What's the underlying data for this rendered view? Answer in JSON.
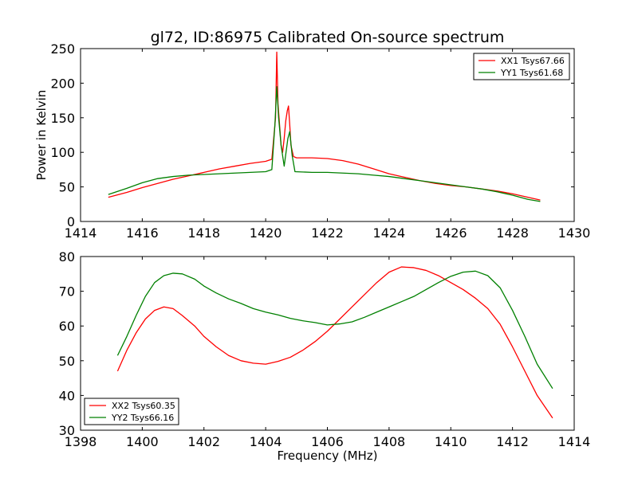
{
  "chart_data": [
    {
      "type": "line",
      "title": "gl72, ID:86975 Calibrated On-source spectrum",
      "xlabel": "",
      "ylabel": "Power in Kelvin",
      "xlim": [
        1414,
        1430
      ],
      "ylim": [
        0,
        250
      ],
      "xticks": [
        1414,
        1416,
        1418,
        1420,
        1422,
        1424,
        1426,
        1428,
        1430
      ],
      "yticks": [
        0,
        50,
        100,
        150,
        200,
        250
      ],
      "xtick_labels": [
        "1414",
        "1416",
        "1418",
        "1420",
        "1422",
        "1424",
        "1426",
        "1428",
        "1430"
      ],
      "ytick_labels": [
        "0",
        "50",
        "100",
        "150",
        "200",
        "250"
      ],
      "grid": false,
      "legend_position": "top-right",
      "series": [
        {
          "name": "XX1 Tsys67.66",
          "color": "#ff0000",
          "x": [
            1414.9,
            1415.5,
            1416.0,
            1416.5,
            1417.0,
            1417.5,
            1418.0,
            1418.5,
            1419.0,
            1419.5,
            1420.0,
            1420.2,
            1420.32,
            1420.36,
            1420.4,
            1420.45,
            1420.5,
            1420.55,
            1420.6,
            1420.65,
            1420.7,
            1420.74,
            1420.78,
            1420.82,
            1420.9,
            1421.0,
            1421.5,
            1422.0,
            1422.5,
            1423.0,
            1423.5,
            1424.0,
            1424.5,
            1425.0,
            1425.5,
            1426.0,
            1426.5,
            1427.0,
            1427.5,
            1428.0,
            1428.5,
            1428.9
          ],
          "y": [
            35,
            42,
            49,
            55,
            61,
            66,
            71,
            76,
            80,
            84,
            87,
            90,
            150,
            245,
            170,
            140,
            110,
            100,
            120,
            145,
            160,
            167,
            140,
            110,
            94,
            92,
            92,
            91,
            88,
            83,
            76,
            69,
            64,
            59,
            55,
            52,
            50,
            47,
            44,
            40,
            35,
            31
          ]
        },
        {
          "name": "YY1 Tsys61.68",
          "color": "#008000",
          "x": [
            1414.9,
            1415.5,
            1416.0,
            1416.5,
            1417.0,
            1417.5,
            1418.0,
            1418.5,
            1419.0,
            1419.5,
            1420.0,
            1420.2,
            1420.3,
            1420.36,
            1420.42,
            1420.5,
            1420.6,
            1420.66,
            1420.72,
            1420.78,
            1420.86,
            1420.95,
            1421.5,
            1422.0,
            1422.5,
            1423.0,
            1423.5,
            1424.0,
            1424.5,
            1425.0,
            1425.5,
            1426.0,
            1426.5,
            1427.0,
            1427.5,
            1428.0,
            1428.5,
            1428.9
          ],
          "y": [
            39,
            48,
            56,
            62,
            65,
            67,
            68,
            69,
            70,
            71,
            72,
            75,
            140,
            195,
            150,
            110,
            80,
            100,
            120,
            130,
            95,
            72,
            71,
            71,
            70,
            69,
            67,
            65,
            62,
            59,
            56,
            53,
            50,
            47,
            43,
            38,
            32,
            29
          ]
        }
      ]
    },
    {
      "type": "line",
      "title": "",
      "xlabel": "Frequency (MHz)",
      "ylabel": "",
      "xlim": [
        1398,
        1414
      ],
      "ylim": [
        30,
        80
      ],
      "xticks": [
        1398,
        1400,
        1402,
        1404,
        1406,
        1408,
        1410,
        1412,
        1414
      ],
      "yticks": [
        30,
        40,
        50,
        60,
        70,
        80
      ],
      "xtick_labels": [
        "1398",
        "1400",
        "1402",
        "1404",
        "1406",
        "1408",
        "1410",
        "1412",
        "1414"
      ],
      "ytick_labels": [
        "30",
        "40",
        "50",
        "60",
        "70",
        "80"
      ],
      "grid": false,
      "legend_position": "bottom-left",
      "series": [
        {
          "name": "XX2 Tsys60.35",
          "color": "#ff0000",
          "x": [
            1399.2,
            1399.5,
            1399.8,
            1400.1,
            1400.4,
            1400.7,
            1401.0,
            1401.3,
            1401.7,
            1402.0,
            1402.4,
            1402.8,
            1403.2,
            1403.6,
            1404.0,
            1404.4,
            1404.8,
            1405.2,
            1405.6,
            1406.0,
            1406.4,
            1406.8,
            1407.2,
            1407.6,
            1408.0,
            1408.4,
            1408.8,
            1409.2,
            1409.6,
            1410.0,
            1410.4,
            1410.8,
            1411.2,
            1411.6,
            1412.0,
            1412.4,
            1412.8,
            1413.3
          ],
          "y": [
            47,
            53,
            58,
            62,
            64.5,
            65.5,
            65,
            63,
            60,
            57,
            54,
            51.5,
            50,
            49.3,
            49,
            49.8,
            51,
            53,
            55.5,
            58.5,
            62,
            65.5,
            69,
            72.5,
            75.5,
            77,
            76.8,
            76,
            74.5,
            72.5,
            70.5,
            68,
            65,
            60.5,
            54,
            47,
            40,
            33.5
          ]
        },
        {
          "name": "YY2 Tsys66.16",
          "color": "#008000",
          "x": [
            1399.2,
            1399.5,
            1399.8,
            1400.1,
            1400.4,
            1400.7,
            1401.0,
            1401.3,
            1401.7,
            1402.0,
            1402.4,
            1402.8,
            1403.2,
            1403.6,
            1404.0,
            1404.4,
            1404.8,
            1405.2,
            1405.6,
            1406.0,
            1406.4,
            1406.8,
            1407.2,
            1407.6,
            1408.0,
            1408.4,
            1408.8,
            1409.2,
            1409.6,
            1410.0,
            1410.4,
            1410.8,
            1411.2,
            1411.6,
            1412.0,
            1412.4,
            1412.8,
            1413.3
          ],
          "y": [
            51.5,
            57,
            63,
            68.5,
            72.5,
            74.5,
            75.2,
            75,
            73.5,
            71.5,
            69.5,
            67.8,
            66.5,
            65,
            64,
            63.2,
            62.2,
            61.5,
            61,
            60.3,
            60.6,
            61.2,
            62.5,
            64,
            65.5,
            67,
            68.5,
            70.5,
            72.5,
            74.3,
            75.5,
            75.8,
            74.5,
            71,
            64.5,
            57,
            49,
            42
          ]
        }
      ]
    }
  ]
}
